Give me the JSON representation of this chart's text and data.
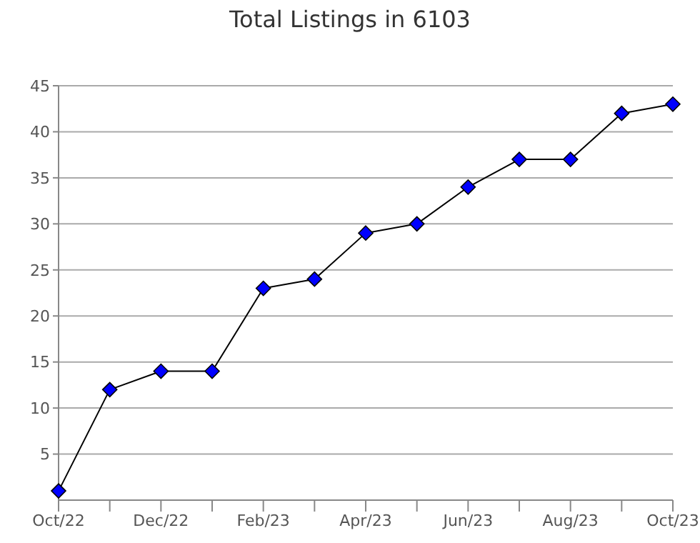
{
  "chart_data": {
    "type": "line",
    "title": "Total Listings in 6103",
    "categories": [
      "Oct/22",
      null,
      "Dec/22",
      null,
      "Feb/23",
      null,
      "Apr/23",
      null,
      "Jun/23",
      null,
      "Aug/23",
      null,
      "Oct/23"
    ],
    "series": [
      {
        "color": "#0000ff",
        "values": [
          1,
          12,
          14,
          14,
          23,
          24,
          29,
          30,
          34,
          37,
          37,
          42,
          43
        ]
      }
    ],
    "ylim": [
      0,
      45
    ],
    "yticks": [
      5,
      10,
      15,
      20,
      25,
      30,
      35,
      40,
      45
    ],
    "grid": "y",
    "marker": "diamond",
    "line_style": "solid"
  }
}
